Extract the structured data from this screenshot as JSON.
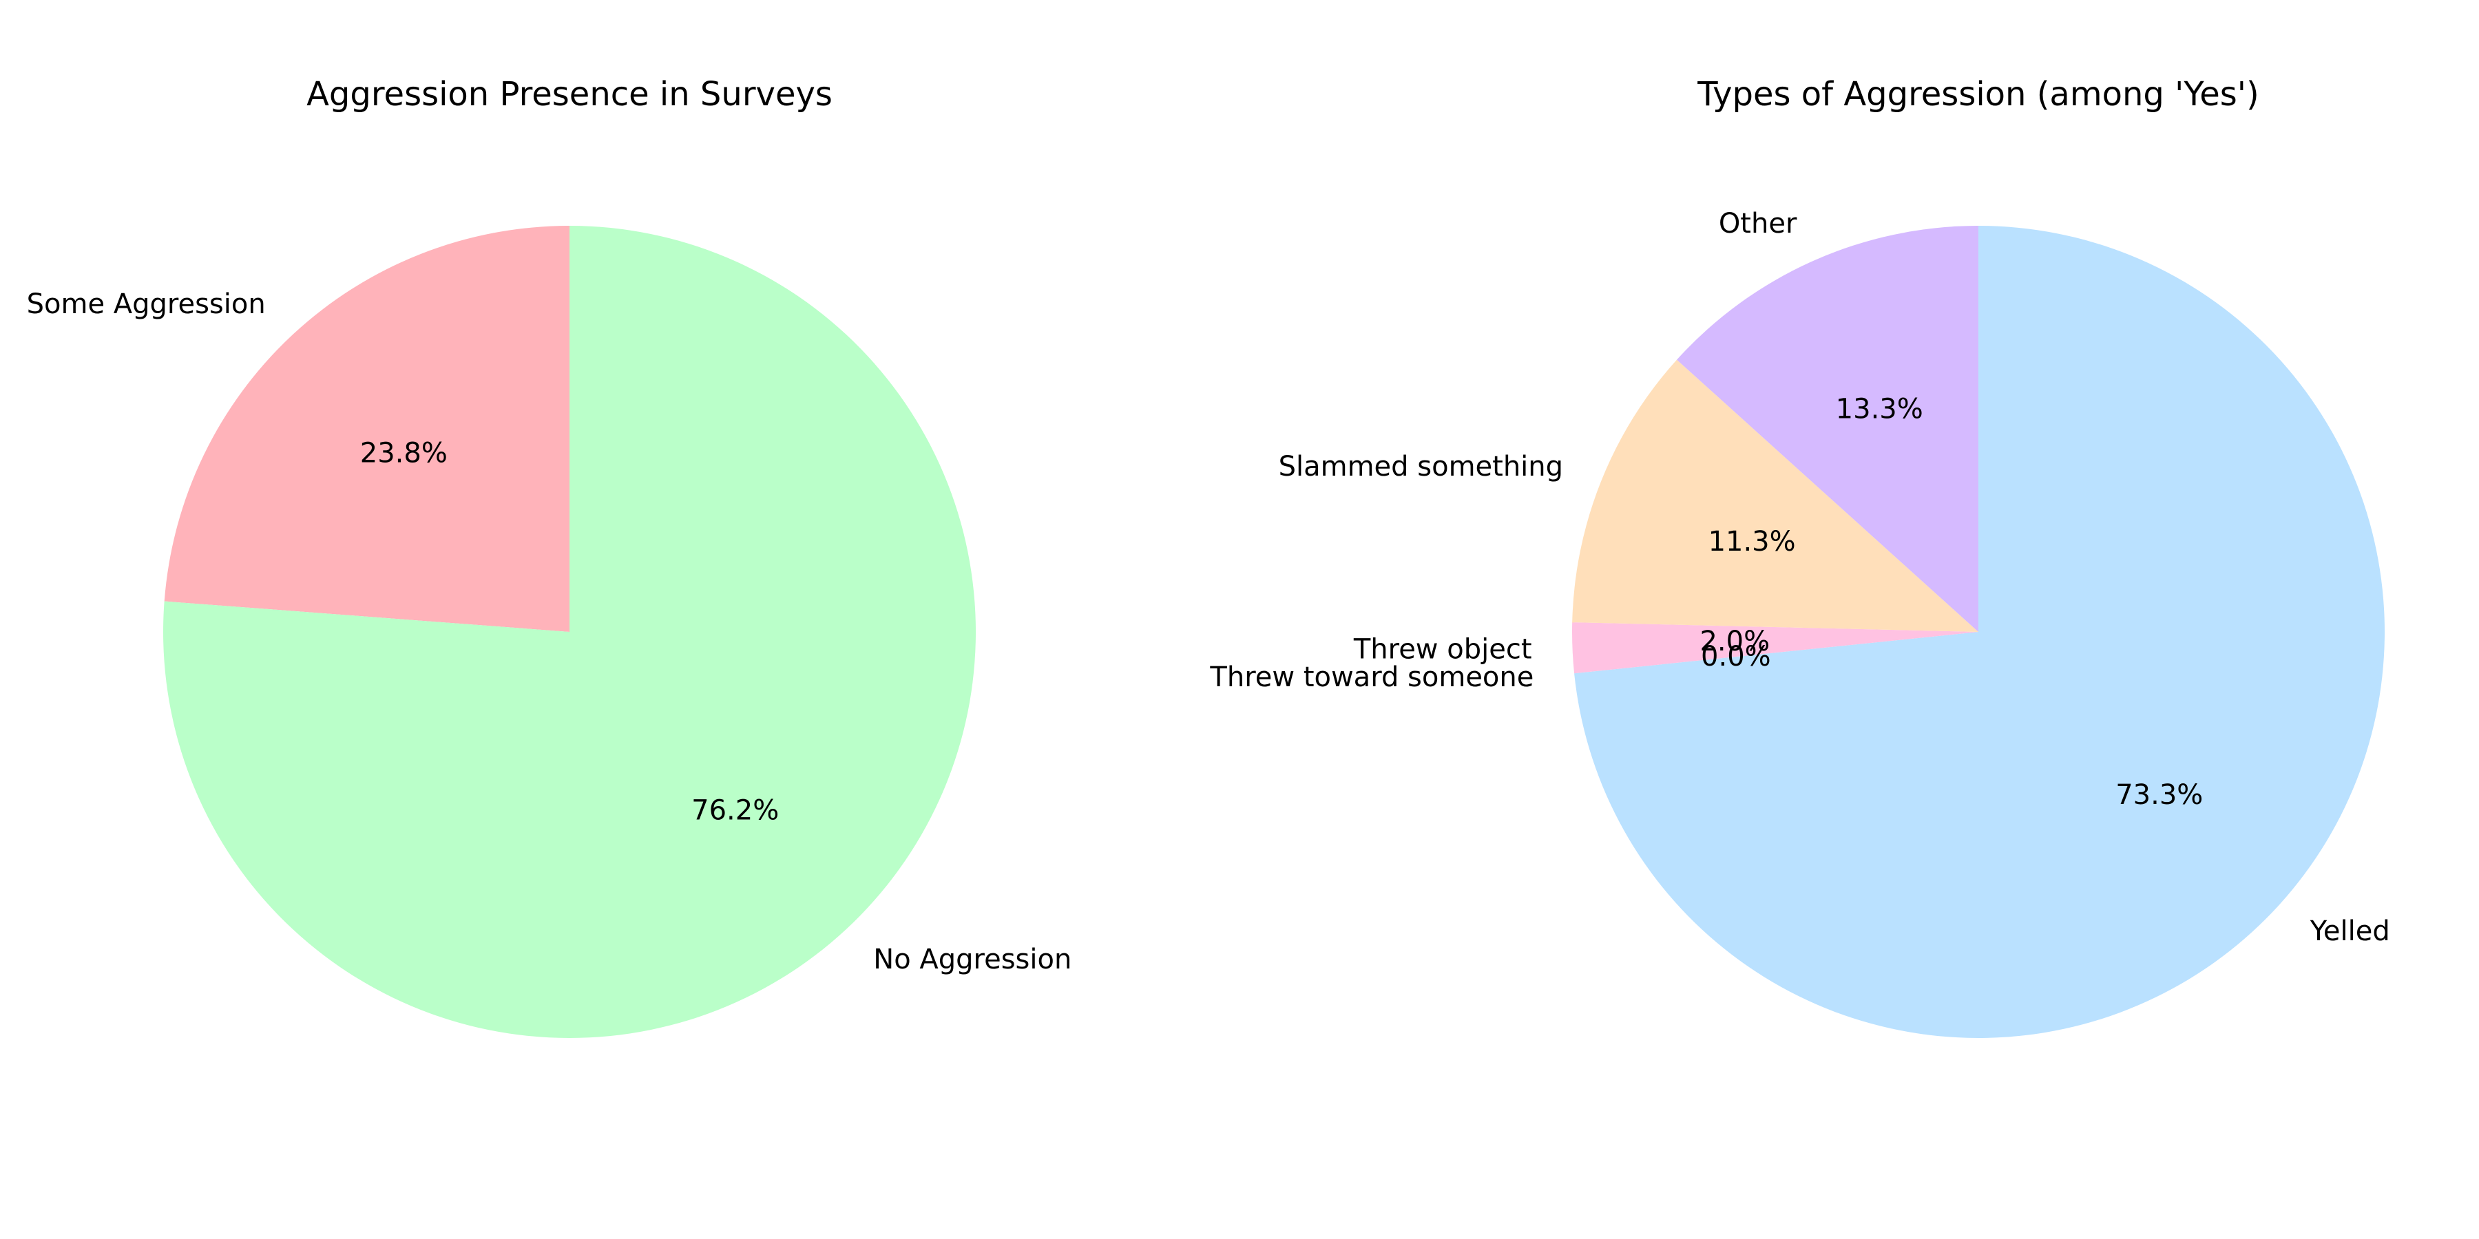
{
  "chart_data": [
    {
      "type": "pie",
      "title": "Aggression Presence in Surveys",
      "start_angle_deg": 90,
      "direction": "counterclockwise",
      "slices": [
        {
          "label": "Some Aggression",
          "value": 23.8,
          "pct_label": "23.8%",
          "color": "#ffb3ba"
        },
        {
          "label": "No Aggression",
          "value": 76.2,
          "pct_label": "76.2%",
          "color": "#baffc9"
        }
      ]
    },
    {
      "type": "pie",
      "title": "Types of Aggression (among 'Yes')",
      "start_angle_deg": 90,
      "direction": "clockwise",
      "slices": [
        {
          "label": "Yelled",
          "value": 73.3,
          "pct_label": "73.3%",
          "color": "#bae1ff"
        },
        {
          "label": "Threw toward someone",
          "value": 0.0,
          "pct_label": "0.0%",
          "color": "#ffffba"
        },
        {
          "label": "Threw object",
          "value": 2.0,
          "pct_label": "2.0%",
          "color": "#ffc2e2"
        },
        {
          "label": "Slammed something",
          "value": 11.3,
          "pct_label": "11.3%",
          "color": "#ffdfba"
        },
        {
          "label": "Other",
          "value": 13.3,
          "pct_label": "13.3%",
          "color": "#d5baff"
        }
      ]
    }
  ]
}
